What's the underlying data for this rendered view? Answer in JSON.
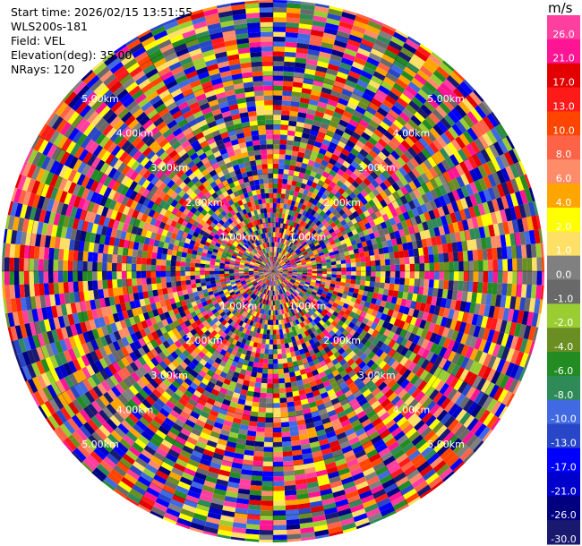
{
  "info": {
    "start_time": "Start time: 2026/02/15 13:51:55",
    "instrument": "WLS200s-181",
    "field": "Field: VEL",
    "elevation": "Elevation(deg): 35.00",
    "nrays": "NRays: 120"
  },
  "chart_data": {
    "type": "heatmap",
    "projection": "polar (PPI scan)",
    "field": "VEL",
    "n_rays": 120,
    "range_rings_km": [
      1,
      2,
      3,
      4,
      5
    ],
    "range_ring_labels": [
      "1.00km",
      "2.00km",
      "3.00km",
      "4.00km",
      "5.00km"
    ],
    "grid": true,
    "colorbar": {
      "unit": "m/s",
      "position": "right",
      "boundaries": [
        26.0,
        21.0,
        17.0,
        13.0,
        10.0,
        8.0,
        6.0,
        4.0,
        2.0,
        1.0,
        0.0,
        -1.0,
        -2.0,
        -4.0,
        -6.0,
        -8.0,
        -10.0,
        -13.0,
        -17.0,
        -21.0,
        -26.0,
        -30.0
      ],
      "tick_labels": [
        "26.0",
        "21.0",
        "17.0",
        "13.0",
        "10.0",
        "8.0",
        "6.0",
        "4.0",
        "2.0",
        "1.0",
        "0.0",
        "-1.0",
        "-2.0",
        "-4.0",
        "-6.0",
        "-8.0",
        "-10.0",
        "-13.0",
        "-17.0",
        "-21.0",
        "-26.0",
        "-30.0"
      ],
      "colors": [
        "#ff3fa0",
        "#ff1493",
        "#e30000",
        "#ff1a1a",
        "#ff4500",
        "#ff6347",
        "#ff8c69",
        "#ffa500",
        "#ffff00",
        "#ffe066",
        "#808080",
        "#696969",
        "#9acd32",
        "#6b8e23",
        "#228b22",
        "#2e8b57",
        "#4169e1",
        "#2846c8",
        "#0000ff",
        "#0000cd",
        "#000080",
        "#191970"
      ]
    }
  }
}
